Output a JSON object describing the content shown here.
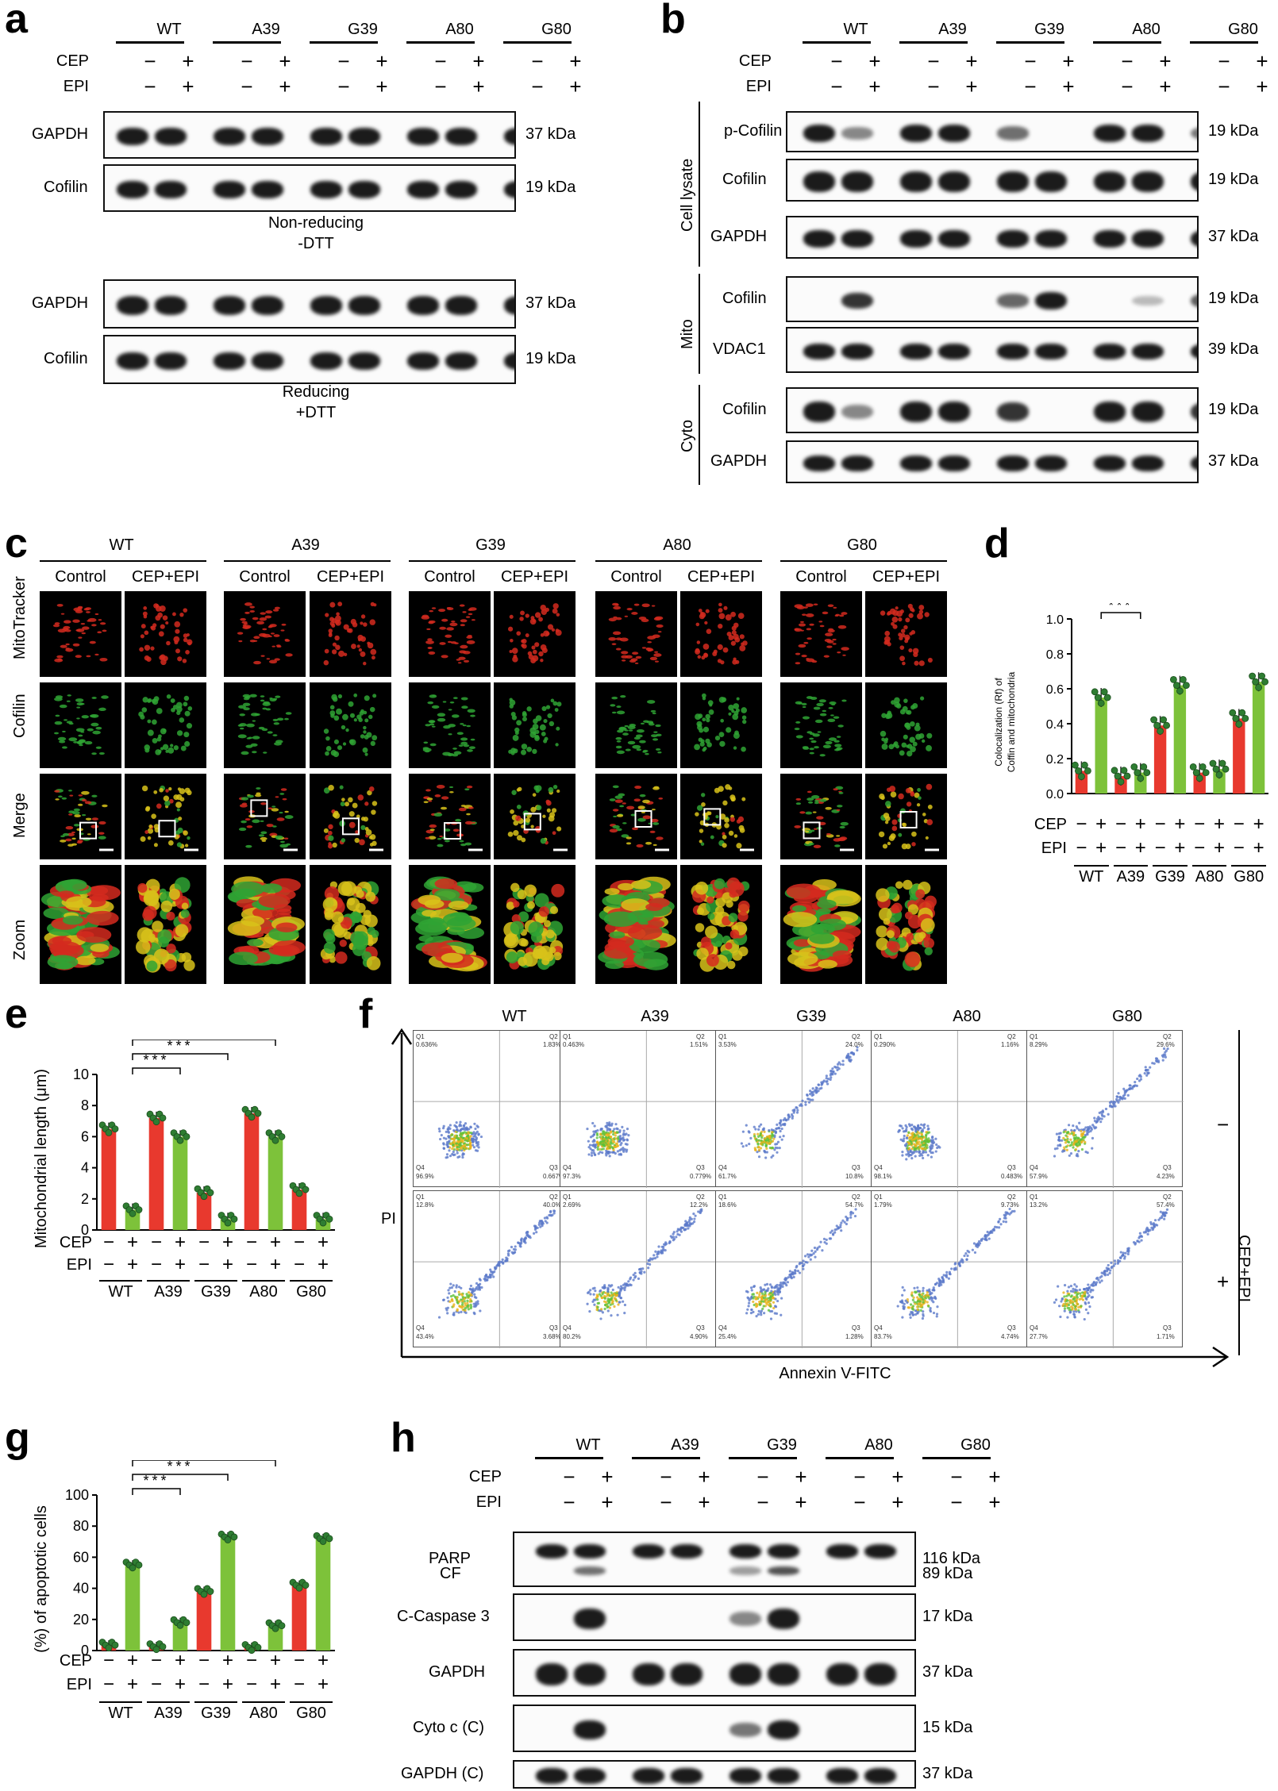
{
  "panels": {
    "a": "a",
    "b": "b",
    "c": "c",
    "d": "d",
    "e": "e",
    "f": "f",
    "g": "g",
    "h": "h"
  },
  "groups": [
    "WT",
    "A39",
    "G39",
    "A80",
    "G80"
  ],
  "row_labels": {
    "cep": "CEP",
    "epi": "EPI"
  },
  "signs": {
    "minus": "−",
    "plus": "+"
  },
  "panel_a": {
    "blots": [
      {
        "name": "GAPDH",
        "kda": "37 kDa"
      },
      {
        "name": "Cofilin",
        "kda": "19 kDa"
      },
      {
        "name": "GAPDH",
        "kda": "37 kDa"
      },
      {
        "name": "Cofilin",
        "kda": "19 kDa"
      }
    ],
    "cond1": "Non-reducing",
    "cond1b": "-DTT",
    "cond2": "Reducing",
    "cond2b": "+DTT"
  },
  "panel_b": {
    "sections": {
      "lysate": "Cell lysate",
      "mito": "Mito",
      "cyto": "Cyto"
    },
    "blots": [
      {
        "name": "p-Cofilin",
        "kda": "19 kDa"
      },
      {
        "name": "Cofilin",
        "kda": "19 kDa"
      },
      {
        "name": "GAPDH",
        "kda": "37 kDa"
      },
      {
        "name": "Cofilin",
        "kda": "19 kDa"
      },
      {
        "name": "VDAC1",
        "kda": "39 kDa"
      },
      {
        "name": "Cofilin",
        "kda": "19 kDa"
      },
      {
        "name": "GAPDH",
        "kda": "37 kDa"
      }
    ]
  },
  "panel_c": {
    "cols": [
      "Control",
      "CEP+EPI"
    ],
    "rows": [
      "MitoTracker",
      "Cofilin",
      "Merge",
      "Zoom"
    ]
  },
  "panel_d": {
    "ylabel": "Colocalization (Rf) of",
    "ylabel2": "Coffin and mitochondria",
    "sig": "***"
  },
  "panel_e": {
    "ylabel": "Mitochondrial length (μm)",
    "sig": "***"
  },
  "panel_f": {
    "ylabel": "PI",
    "xlabel": "Annexin V-FITC",
    "side": "CEP+EPI",
    "row_signs": [
      "−",
      "+"
    ],
    "quadrants": [
      [
        [
          "Q1",
          "0.636%",
          "Q2",
          "1.83%",
          "Q4",
          "96.9%",
          "Q3",
          "0.667%"
        ],
        [
          "Q1",
          "0.463%",
          "Q2",
          "1.51%",
          "Q4",
          "97.3%",
          "Q3",
          "0.779%"
        ],
        [
          "Q1",
          "3.53%",
          "Q2",
          "24.0%",
          "Q4",
          "61.7%",
          "Q3",
          "10.8%"
        ],
        [
          "Q1",
          "0.290%",
          "Q2",
          "1.16%",
          "Q4",
          "98.1%",
          "Q3",
          "0.483%"
        ],
        [
          "Q1",
          "8.29%",
          "Q2",
          "29.6%",
          "Q4",
          "57.9%",
          "Q3",
          "4.23%"
        ]
      ],
      [
        [
          "Q1",
          "12.8%",
          "Q2",
          "40.0%",
          "Q4",
          "43.4%",
          "Q3",
          "3.68%"
        ],
        [
          "Q1",
          "2.69%",
          "Q2",
          "12.2%",
          "Q4",
          "80.2%",
          "Q3",
          "4.90%"
        ],
        [
          "Q1",
          "18.6%",
          "Q2",
          "54.7%",
          "Q4",
          "25.4%",
          "Q3",
          "1.28%"
        ],
        [
          "Q1",
          "1.79%",
          "Q2",
          "9.73%",
          "Q4",
          "83.7%",
          "Q3",
          "4.74%"
        ],
        [
          "Q1",
          "13.2%",
          "Q2",
          "57.4%",
          "Q4",
          "27.7%",
          "Q3",
          "1.71%"
        ]
      ]
    ]
  },
  "panel_g": {
    "ylabel": "(%) of apoptotic cells",
    "sig": "***"
  },
  "panel_h": {
    "blots": [
      {
        "name": "PARP",
        "name2": "CF",
        "kda": "116 kDa",
        "kda2": "89 kDa"
      },
      {
        "name": "C-Caspase 3",
        "kda": "17 kDa"
      },
      {
        "name": "GAPDH",
        "kda": "37 kDa"
      },
      {
        "name": "Cyto c (C)",
        "kda": "15 kDa"
      },
      {
        "name": "GAPDH (C)",
        "kda": "37 kDa"
      }
    ]
  },
  "chart_data": [
    {
      "type": "bar",
      "title": "",
      "ylabel": "Colocalization (Rf) of Coffin and mitochondria",
      "categories": [
        "WT −",
        "WT +",
        "A39 −",
        "A39 +",
        "G39 −",
        "G39 +",
        "A80 −",
        "A80 +",
        "G80 −",
        "G80 +"
      ],
      "values": [
        0.13,
        0.55,
        0.1,
        0.12,
        0.39,
        0.62,
        0.12,
        0.14,
        0.43,
        0.64
      ],
      "ylim": [
        0,
        1.0
      ],
      "yticks": [
        "0.0",
        "0.2",
        "0.4",
        "0.6",
        "0.8",
        "1.0"
      ],
      "colors": [
        "#e8392e",
        "#7dc23a"
      ]
    },
    {
      "type": "bar",
      "title": "",
      "ylabel": "Mitochondrial length (μm)",
      "categories": [
        "WT −",
        "WT +",
        "A39 −",
        "A39 +",
        "G39 −",
        "G39 +",
        "A80 −",
        "A80 +",
        "G80 −",
        "G80 +"
      ],
      "values": [
        6.5,
        1.3,
        7.2,
        6.0,
        2.4,
        0.7,
        7.5,
        6.0,
        2.6,
        0.7
      ],
      "ylim": [
        0,
        10
      ],
      "yticks": [
        "0",
        "2",
        "4",
        "6",
        "8",
        "10"
      ],
      "colors": [
        "#e8392e",
        "#7dc23a"
      ]
    },
    {
      "type": "bar",
      "title": "",
      "ylabel": "(%) of apoptotic cells",
      "categories": [
        "WT −",
        "WT +",
        "A39 −",
        "A39 +",
        "G39 −",
        "G39 +",
        "A80 −",
        "A80 +",
        "G80 −",
        "G80 +"
      ],
      "values": [
        3.5,
        55,
        2.5,
        18,
        38,
        73,
        2,
        16,
        42,
        72
      ],
      "ylim": [
        0,
        100
      ],
      "yticks": [
        "0",
        "20",
        "40",
        "60",
        "80",
        "100"
      ],
      "colors": [
        "#e8392e",
        "#7dc23a"
      ]
    }
  ]
}
